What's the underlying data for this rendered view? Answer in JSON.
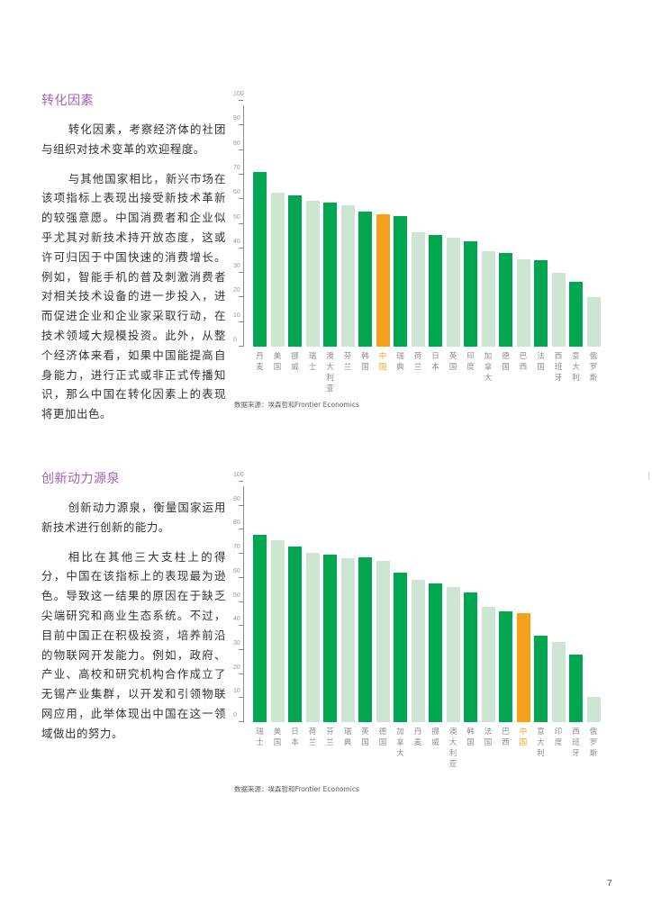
{
  "colors": {
    "accent_title": "#a462bb",
    "bar_highlight_dark": "#00a650",
    "bar_light": "#cde6d4",
    "bar_china": "#f5a11c"
  },
  "sections": [
    {
      "title": "转化因素",
      "paragraphs": [
        "转化因素，考察经济体的社团与组织对技术变革的欢迎程度。",
        "与其他国家相比，新兴市场在该项指标上表现出接受新技术革新的较强意愿。中国消费者和企业似乎尤其对新技术持开放态度，这或许可归因于中国快速的消费增长。例如，智能手机的普及刺激消费者对相关技术设备的进一步投入，进而促进企业和企业家采取行动，在技术领域大规模投资。此外，从整个经济体来看，如果中国能提高自身能力，进行正式或非正式传播知识，那么中国在转化因素上的表现将更加出色。"
      ],
      "source": "数据来源：埃森哲和Frontier Economics"
    },
    {
      "title": "创新动力源泉",
      "paragraphs": [
        "创新动力源泉，衡量国家运用新技术进行创新的能力。",
        "相比在其他三大支柱上的得分，中国在该指标上的表现最为逊色。导致这一结果的原因在于缺乏尖端研究和商业生态系统。不过，目前中国正在积极投资，培养前沿的物联网开发能力。例如，政府、产业、高校和研究机构合作成立了无锡产业集群，以开发和引领物联网应用，此举体现出中国在这一领域做出的努力。"
      ],
      "source": "数据来源：埃森哲和Frontier Economics"
    }
  ],
  "page_number": "7",
  "chart_data": [
    {
      "type": "bar",
      "title": "转化因素",
      "xlabel": "",
      "ylabel": "",
      "ylim": [
        0,
        100
      ],
      "yticks": [
        0,
        10,
        20,
        30,
        40,
        50,
        60,
        70,
        80,
        90,
        100
      ],
      "grid": false,
      "legend": null,
      "categories": [
        "丹麦",
        "美国",
        "挪威",
        "瑞士",
        "澳大利亚",
        "芬兰",
        "韩国",
        "中国",
        "瑞典",
        "荷兰",
        "日本",
        "英国",
        "印度",
        "加拿大",
        "德国",
        "巴西",
        "法国",
        "西班牙",
        "意大利",
        "俄罗斯"
      ],
      "values": [
        71,
        62.5,
        61.5,
        59.5,
        58.5,
        57.5,
        55,
        54,
        53,
        46.5,
        45.5,
        44.5,
        43,
        39,
        38,
        35.5,
        35,
        30,
        26.5,
        20
      ],
      "bar_styles": [
        "dark",
        "light",
        "dark",
        "light",
        "dark",
        "light",
        "dark",
        "china",
        "dark",
        "light",
        "dark",
        "light",
        "dark",
        "light",
        "dark",
        "light",
        "dark",
        "light",
        "dark",
        "light"
      ]
    },
    {
      "type": "bar",
      "title": "创新动力源泉",
      "xlabel": "",
      "ylabel": "",
      "ylim": [
        0,
        100
      ],
      "yticks": [
        0,
        10,
        20,
        30,
        40,
        50,
        60,
        70,
        80,
        90,
        100
      ],
      "grid": false,
      "legend": null,
      "categories": [
        "瑞士",
        "美国",
        "日本",
        "荷兰",
        "芬兰",
        "瑞典",
        "英国",
        "德国",
        "加拿大",
        "丹麦",
        "挪威",
        "澳大利亚",
        "韩国",
        "法国",
        "巴西",
        "中国",
        "意大利",
        "印度",
        "西班牙",
        "俄罗斯"
      ],
      "values": [
        78,
        75.5,
        73,
        70.5,
        69.5,
        68,
        68.5,
        67,
        62,
        59,
        57.5,
        56,
        54,
        48,
        46,
        45.5,
        36,
        33.5,
        28,
        10.5
      ],
      "bar_styles": [
        "dark",
        "light",
        "dark",
        "light",
        "dark",
        "light",
        "dark",
        "light",
        "dark",
        "light",
        "dark",
        "light",
        "dark",
        "light",
        "dark",
        "china",
        "dark",
        "light",
        "dark",
        "light"
      ]
    }
  ]
}
